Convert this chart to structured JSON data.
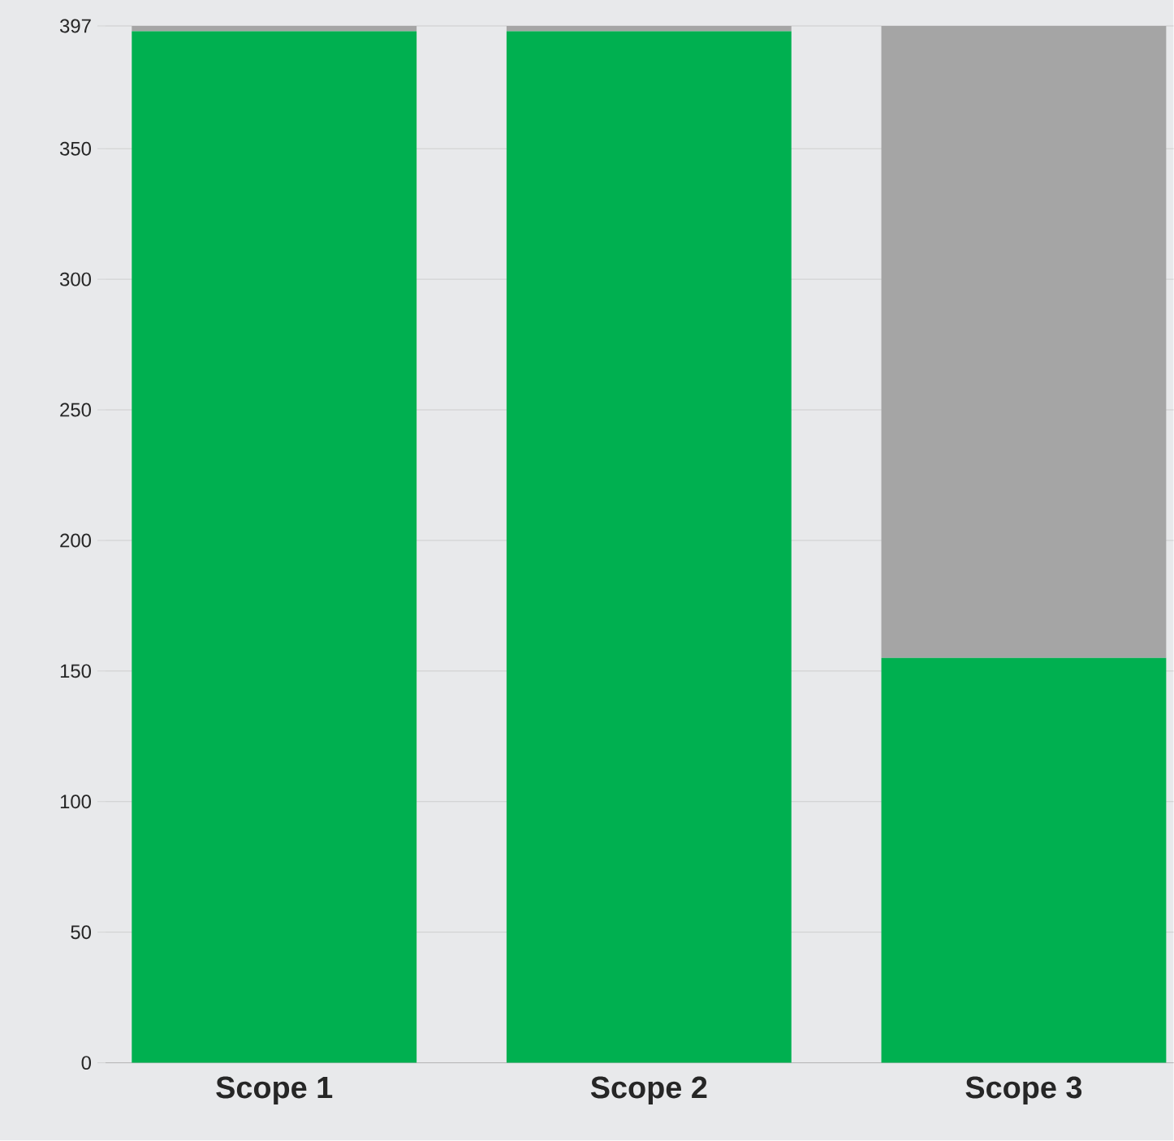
{
  "chart_data": {
    "type": "bar",
    "stacked": true,
    "categories": [
      "Scope 1",
      "Scope 2",
      "Scope 3"
    ],
    "series": [
      {
        "color": "#00b050",
        "values": [
          395,
          395,
          155
        ]
      },
      {
        "color": "#a5a5a5",
        "values": [
          2,
          2,
          242
        ]
      }
    ],
    "ylim": [
      0,
      397
    ],
    "yticks": [
      0,
      50,
      100,
      150,
      200,
      250,
      300,
      350,
      397
    ],
    "grid": "y"
  }
}
